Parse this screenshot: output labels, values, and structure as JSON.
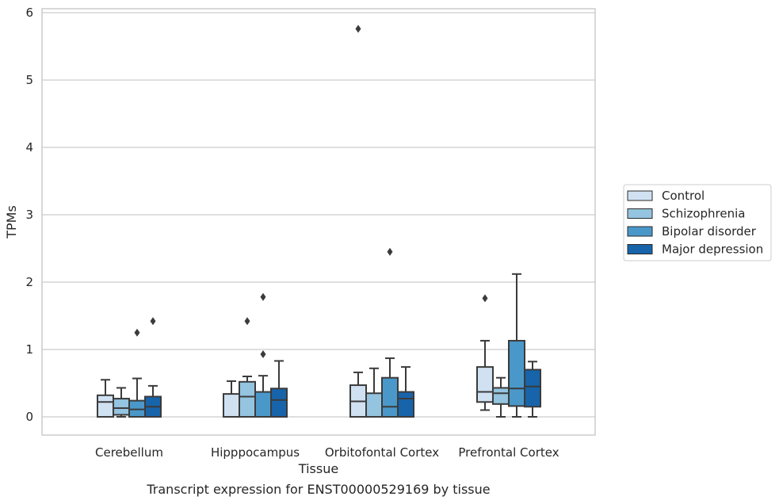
{
  "chart_data": {
    "type": "box",
    "caption": "Transcript expression for ENST00000529169 by tissue",
    "xlabel": "Tissue",
    "ylabel": "TPMs",
    "ylim": [
      -0.28,
      6.05
    ],
    "yticks": [
      0,
      1,
      2,
      3,
      4,
      5,
      6
    ],
    "grid": true,
    "legend_position": "right",
    "categories": [
      "Cerebellum",
      "Hipppocampus",
      "Orbitofontal Cortex",
      "Prefrontal Cortex"
    ],
    "series": [
      {
        "name": "Control",
        "color": "#d0e1f2",
        "boxes": [
          {
            "whislo": 0.0,
            "q1": 0.0,
            "med": 0.22,
            "q3": 0.32,
            "whishi": 0.55,
            "fliers": []
          },
          {
            "whislo": 0.0,
            "q1": 0.0,
            "med": 0.0,
            "q3": 0.34,
            "whishi": 0.53,
            "fliers": []
          },
          {
            "whislo": 0.0,
            "q1": 0.0,
            "med": 0.23,
            "q3": 0.47,
            "whishi": 0.66,
            "fliers": [
              5.76
            ]
          },
          {
            "whislo": 0.1,
            "q1": 0.22,
            "med": 0.37,
            "q3": 0.74,
            "whishi": 1.13,
            "fliers": [
              1.76
            ]
          }
        ]
      },
      {
        "name": "Schizophrenia",
        "color": "#94c4df",
        "boxes": [
          {
            "whislo": 0.0,
            "q1": 0.03,
            "med": 0.13,
            "q3": 0.27,
            "whishi": 0.43,
            "fliers": []
          },
          {
            "whislo": 0.0,
            "q1": 0.0,
            "med": 0.3,
            "q3": 0.52,
            "whishi": 0.6,
            "fliers": [
              1.42
            ]
          },
          {
            "whislo": 0.0,
            "q1": 0.0,
            "med": 0.0,
            "q3": 0.35,
            "whishi": 0.72,
            "fliers": []
          },
          {
            "whislo": 0.0,
            "q1": 0.19,
            "med": 0.35,
            "q3": 0.43,
            "whishi": 0.58,
            "fliers": []
          }
        ]
      },
      {
        "name": "Bipolar disorder",
        "color": "#4a98c9",
        "boxes": [
          {
            "whislo": 0.0,
            "q1": 0.0,
            "med": 0.11,
            "q3": 0.24,
            "whishi": 0.57,
            "fliers": [
              1.25
            ]
          },
          {
            "whislo": 0.0,
            "q1": 0.0,
            "med": 0.0,
            "q3": 0.37,
            "whishi": 0.61,
            "fliers": [
              0.93,
              1.78
            ]
          },
          {
            "whislo": 0.0,
            "q1": 0.0,
            "med": 0.15,
            "q3": 0.58,
            "whishi": 0.87,
            "fliers": [
              2.45
            ]
          },
          {
            "whislo": 0.0,
            "q1": 0.16,
            "med": 0.42,
            "q3": 1.13,
            "whishi": 2.12,
            "fliers": []
          }
        ]
      },
      {
        "name": "Major depression",
        "color": "#1764ab",
        "boxes": [
          {
            "whislo": 0.0,
            "q1": 0.0,
            "med": 0.15,
            "q3": 0.3,
            "whishi": 0.46,
            "fliers": [
              1.42
            ]
          },
          {
            "whislo": 0.0,
            "q1": 0.0,
            "med": 0.25,
            "q3": 0.42,
            "whishi": 0.83,
            "fliers": []
          },
          {
            "whislo": 0.0,
            "q1": 0.0,
            "med": 0.27,
            "q3": 0.37,
            "whishi": 0.74,
            "fliers": []
          },
          {
            "whislo": 0.0,
            "q1": 0.15,
            "med": 0.45,
            "q3": 0.7,
            "whishi": 0.82,
            "fliers": []
          }
        ]
      }
    ]
  }
}
